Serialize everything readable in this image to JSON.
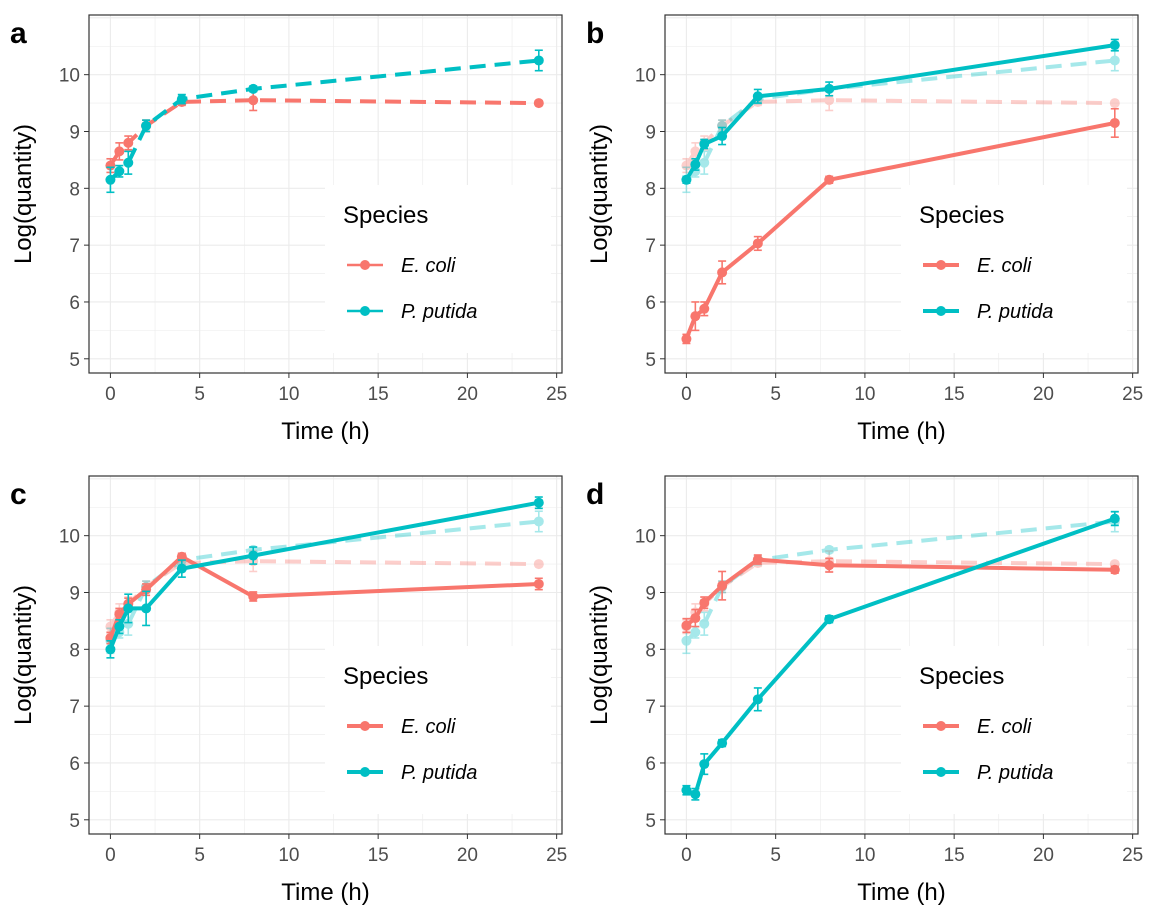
{
  "colors": {
    "ecoli": "#F8766D",
    "pputida": "#00BFC4"
  },
  "axes": {
    "xlabel": "Time (h)",
    "ylabel": "Log(quantity)"
  },
  "legend": {
    "title": "Species",
    "entries": [
      "E. coli",
      "P. putida"
    ]
  },
  "chart_data": [
    {
      "panel": "a",
      "type": "line",
      "xlabel": "Time (h)",
      "ylabel": "Log(quantity)",
      "xlim": [
        -1.2,
        25.3
      ],
      "ylim": [
        4.75,
        11.05
      ],
      "xticks": [
        0,
        5,
        10,
        15,
        20,
        25
      ],
      "yticks": [
        5,
        6,
        7,
        8,
        9,
        10
      ],
      "grid": true,
      "legend_position": "bottom-right",
      "series": [
        {
          "name": "E. coli",
          "color": "#F8766D",
          "style": "dashed",
          "x": [
            0,
            0.5,
            1,
            2,
            4,
            8,
            24
          ],
          "y": [
            8.4,
            8.65,
            8.8,
            9.1,
            9.52,
            9.55,
            9.5
          ],
          "err": [
            0.12,
            0.15,
            0.12,
            0.1,
            0.06,
            0.18,
            0.04
          ]
        },
        {
          "name": "P. putida",
          "color": "#00BFC4",
          "style": "dashed",
          "x": [
            0,
            0.5,
            1,
            2,
            4,
            8,
            24
          ],
          "y": [
            8.15,
            8.3,
            8.45,
            9.1,
            9.57,
            9.75,
            10.25
          ],
          "err": [
            0.22,
            0.1,
            0.2,
            0.1,
            0.08,
            0.05,
            0.18
          ]
        }
      ]
    },
    {
      "panel": "b",
      "type": "line",
      "xlabel": "Time (h)",
      "ylabel": "Log(quantity)",
      "xlim": [
        -1.2,
        25.3
      ],
      "ylim": [
        4.75,
        11.05
      ],
      "xticks": [
        0,
        5,
        10,
        15,
        20,
        25
      ],
      "yticks": [
        5,
        6,
        7,
        8,
        9,
        10
      ],
      "grid": true,
      "legend_position": "bottom-right",
      "series": [
        {
          "name": "E. coli",
          "color": "#F8766D",
          "style": "solid",
          "x": [
            0,
            0.5,
            1,
            2,
            4,
            8,
            24
          ],
          "y": [
            5.35,
            5.75,
            5.88,
            6.52,
            7.03,
            8.15,
            9.15
          ],
          "err": [
            0.08,
            0.25,
            0.12,
            0.2,
            0.12,
            0.06,
            0.25
          ]
        },
        {
          "name": "P. putida",
          "color": "#00BFC4",
          "style": "solid",
          "x": [
            0,
            0.5,
            1,
            2,
            4,
            8,
            24
          ],
          "y": [
            8.15,
            8.42,
            8.78,
            8.92,
            9.62,
            9.75,
            10.52
          ],
          "err": [
            0.06,
            0.1,
            0.08,
            0.15,
            0.12,
            0.12,
            0.1
          ]
        },
        {
          "name": "E. coli reference",
          "color": "#F8766D",
          "style": "faded",
          "x": [
            0,
            0.5,
            1,
            2,
            4,
            8,
            24
          ],
          "y": [
            8.4,
            8.65,
            8.8,
            9.1,
            9.52,
            9.55,
            9.5
          ],
          "err": [
            0.12,
            0.15,
            0.12,
            0.1,
            0.06,
            0.18,
            0.04
          ]
        },
        {
          "name": "P. putida reference",
          "color": "#00BFC4",
          "style": "faded",
          "x": [
            0,
            0.5,
            1,
            2,
            4,
            8,
            24
          ],
          "y": [
            8.15,
            8.3,
            8.45,
            9.1,
            9.57,
            9.75,
            10.25
          ],
          "err": [
            0.22,
            0.1,
            0.2,
            0.1,
            0.08,
            0.05,
            0.18
          ]
        }
      ]
    },
    {
      "panel": "c",
      "type": "line",
      "xlabel": "Time (h)",
      "ylabel": "Log(quantity)",
      "xlim": [
        -1.2,
        25.3
      ],
      "ylim": [
        4.75,
        11.05
      ],
      "xticks": [
        0,
        5,
        10,
        15,
        20,
        25
      ],
      "yticks": [
        5,
        6,
        7,
        8,
        9,
        10
      ],
      "grid": true,
      "legend_position": "bottom-right",
      "series": [
        {
          "name": "E. coli",
          "color": "#F8766D",
          "style": "solid",
          "x": [
            0,
            0.5,
            1,
            2,
            4,
            8,
            24
          ],
          "y": [
            8.2,
            8.62,
            8.8,
            9.05,
            9.63,
            8.93,
            9.15
          ],
          "err": [
            0.1,
            0.1,
            0.1,
            0.1,
            0.06,
            0.08,
            0.1
          ]
        },
        {
          "name": "P. putida",
          "color": "#00BFC4",
          "style": "solid",
          "x": [
            0,
            0.5,
            1,
            2,
            4,
            8,
            24
          ],
          "y": [
            8.0,
            8.4,
            8.72,
            8.72,
            9.42,
            9.65,
            10.58
          ],
          "err": [
            0.15,
            0.12,
            0.25,
            0.3,
            0.15,
            0.15,
            0.1
          ]
        },
        {
          "name": "E. coli reference",
          "color": "#F8766D",
          "style": "faded",
          "x": [
            0,
            0.5,
            1,
            2,
            4,
            8,
            24
          ],
          "y": [
            8.4,
            8.65,
            8.8,
            9.1,
            9.52,
            9.55,
            9.5
          ],
          "err": [
            0.12,
            0.15,
            0.12,
            0.1,
            0.06,
            0.18,
            0.04
          ]
        },
        {
          "name": "P. putida reference",
          "color": "#00BFC4",
          "style": "faded",
          "x": [
            0,
            0.5,
            1,
            2,
            4,
            8,
            24
          ],
          "y": [
            8.15,
            8.3,
            8.45,
            9.1,
            9.57,
            9.75,
            10.25
          ],
          "err": [
            0.22,
            0.1,
            0.2,
            0.1,
            0.08,
            0.05,
            0.18
          ]
        }
      ]
    },
    {
      "panel": "d",
      "type": "line",
      "xlabel": "Time (h)",
      "ylabel": "Log(quantity)",
      "xlim": [
        -1.2,
        25.3
      ],
      "ylim": [
        4.75,
        11.05
      ],
      "xticks": [
        0,
        5,
        10,
        15,
        20,
        25
      ],
      "yticks": [
        5,
        6,
        7,
        8,
        9,
        10
      ],
      "grid": true,
      "legend_position": "bottom-right",
      "series": [
        {
          "name": "E. coli",
          "color": "#F8766D",
          "style": "solid",
          "x": [
            0,
            0.5,
            1,
            2,
            4,
            8,
            24
          ],
          "y": [
            8.42,
            8.55,
            8.82,
            9.12,
            9.58,
            9.48,
            9.4
          ],
          "err": [
            0.12,
            0.15,
            0.1,
            0.25,
            0.08,
            0.12,
            0.06
          ]
        },
        {
          "name": "P. putida",
          "color": "#00BFC4",
          "style": "solid",
          "x": [
            0,
            0.5,
            1,
            2,
            4,
            8,
            24
          ],
          "y": [
            5.52,
            5.45,
            5.98,
            6.35,
            7.12,
            8.53,
            10.3
          ],
          "err": [
            0.08,
            0.1,
            0.18,
            0.06,
            0.2,
            0.06,
            0.12
          ]
        },
        {
          "name": "E. coli reference",
          "color": "#F8766D",
          "style": "faded",
          "x": [
            0,
            0.5,
            1,
            2,
            4,
            8,
            24
          ],
          "y": [
            8.4,
            8.65,
            8.8,
            9.1,
            9.52,
            9.55,
            9.5
          ],
          "err": [
            0.12,
            0.15,
            0.12,
            0.1,
            0.06,
            0.18,
            0.04
          ]
        },
        {
          "name": "P. putida reference",
          "color": "#00BFC4",
          "style": "faded",
          "x": [
            0,
            0.5,
            1,
            2,
            4,
            8,
            24
          ],
          "y": [
            8.15,
            8.3,
            8.45,
            9.1,
            9.57,
            9.75,
            10.25
          ],
          "err": [
            0.22,
            0.1,
            0.2,
            0.1,
            0.08,
            0.05,
            0.18
          ]
        }
      ]
    }
  ]
}
